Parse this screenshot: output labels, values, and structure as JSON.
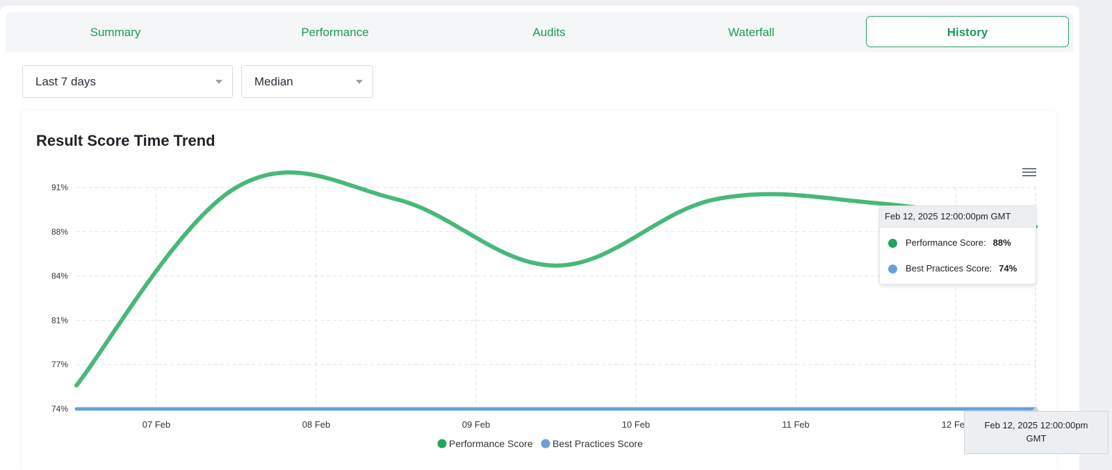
{
  "tabs": [
    {
      "label": "Summary",
      "active": false
    },
    {
      "label": "Performance",
      "active": false
    },
    {
      "label": "Audits",
      "active": false
    },
    {
      "label": "Waterfall",
      "active": false
    },
    {
      "label": "History",
      "active": true
    }
  ],
  "filters": {
    "range": {
      "value": "Last 7 days",
      "icon": "chevron-down-icon"
    },
    "aggregate": {
      "value": "Median",
      "icon": "chevron-down-icon"
    }
  },
  "card": {
    "title": "Result Score Time Trend",
    "menu_icon": "hamburger-menu-icon"
  },
  "tooltip": {
    "header": "Feb 12, 2025 12:00:00pm GMT",
    "rows": [
      {
        "label": "Performance Score:",
        "value": "88%",
        "color": "#1fa55c"
      },
      {
        "label": "Best Practices Score:",
        "value": "74%",
        "color": "#6a9fdc"
      }
    ]
  },
  "xaxis_tooltip": {
    "line1": "Feb 12, 2025 12:00:00pm",
    "line2": "GMT"
  },
  "chart_data": {
    "type": "line",
    "title": "Result Score Time Trend",
    "x": [
      "06 Feb 12:00",
      "07 Feb 12:00",
      "08 Feb 12:00",
      "09 Feb 12:00",
      "10 Feb 12:00",
      "11 Feb 12:00",
      "12 Feb 12:00"
    ],
    "x_ticks": [
      "07 Feb",
      "08 Feb",
      "09 Feb",
      "10 Feb",
      "11 Feb",
      "12 Feb"
    ],
    "y_ticks": [
      "91%",
      "88%",
      "84%",
      "81%",
      "77%",
      "74%"
    ],
    "ylim": [
      74,
      91
    ],
    "series": [
      {
        "name": "Performance Score",
        "color": "#48b878",
        "values": [
          75.8,
          91.0,
          90.1,
          85.0,
          90.1,
          89.8,
          88.0
        ]
      },
      {
        "name": "Best Practices Score",
        "color": "#6a9fdc",
        "values": [
          74,
          74,
          74,
          74,
          74,
          74,
          74
        ]
      }
    ],
    "legend_position": "bottom",
    "grid": true
  }
}
